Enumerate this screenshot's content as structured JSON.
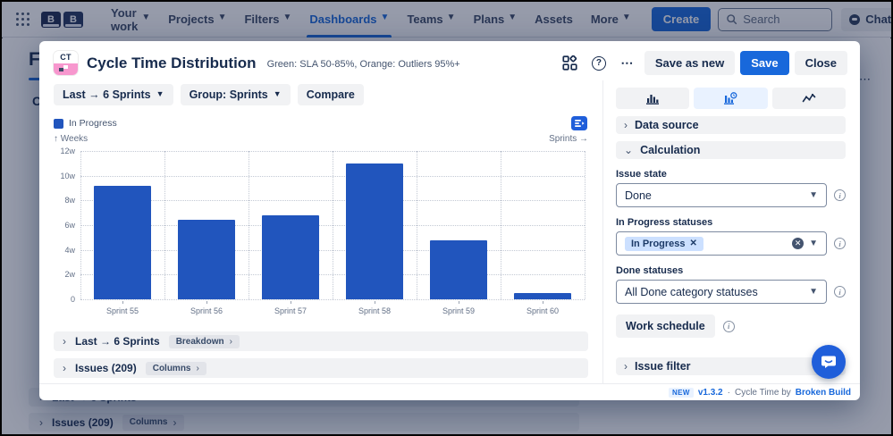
{
  "colors": {
    "accent": "#1868db",
    "bar": "#2155bd",
    "selected_tab_bg": "#e9f2ff",
    "tag_bg": "#cce0ff"
  },
  "topnav": {
    "logo_letters": [
      "B",
      "B"
    ],
    "items": [
      {
        "label": "Your work",
        "dropdown": true,
        "active": false
      },
      {
        "label": "Projects",
        "dropdown": true,
        "active": false
      },
      {
        "label": "Filters",
        "dropdown": true,
        "active": false
      },
      {
        "label": "Dashboards",
        "dropdown": true,
        "active": true
      },
      {
        "label": "Teams",
        "dropdown": true,
        "active": false
      },
      {
        "label": "Plans",
        "dropdown": true,
        "active": false
      },
      {
        "label": "Assets",
        "dropdown": false,
        "active": false
      },
      {
        "label": "More",
        "dropdown": true,
        "active": false
      }
    ],
    "create_label": "Create",
    "search_placeholder": "Search",
    "chat_label": "Chat"
  },
  "background": {
    "page_heading": "Fl",
    "partial_text": "C",
    "rows": [
      {
        "title": "Last → 6 Sprints"
      },
      {
        "title": "Issues (209)",
        "chip": "Columns"
      }
    ]
  },
  "modal": {
    "app_icon_text": "CT",
    "title": "Cycle Time Distribution",
    "subtitle": "Green: SLA 50-85%, Orange: Outliers 95%+",
    "header_buttons": {
      "save_as_new": "Save as new",
      "save": "Save",
      "close": "Close"
    },
    "toolbar": {
      "range": "Last → 6 Sprints",
      "group": "Group: Sprints",
      "compare": "Compare"
    },
    "legend": {
      "label": "In Progress"
    },
    "axis": {
      "y": "↑ Weeks",
      "x": "Sprints →"
    },
    "breakdown_row": {
      "title": "Last → 6 Sprints",
      "chip": "Breakdown"
    },
    "issues_row": {
      "title": "Issues (209)",
      "chip": "Columns"
    },
    "panel": {
      "accordions": {
        "data_source": "Data source",
        "calculation": "Calculation",
        "issue_filter": "Issue filter"
      },
      "fields": {
        "issue_state": {
          "label": "Issue state",
          "value": "Done"
        },
        "in_progress": {
          "label": "In Progress statuses",
          "tag": "In Progress"
        },
        "done": {
          "label": "Done statuses",
          "value": "All Done category statuses"
        }
      },
      "work_schedule_label": "Work schedule"
    },
    "footer": {
      "badge": "NEW",
      "version": "v1.3.2",
      "sep": "·",
      "text": "Cycle Time by",
      "link": "Broken Build"
    }
  },
  "chart_data": {
    "type": "bar",
    "title": "Cycle Time Distribution",
    "categories": [
      "Sprint 55",
      "Sprint 56",
      "Sprint 57",
      "Sprint 58",
      "Sprint 59",
      "Sprint 60"
    ],
    "series": [
      {
        "name": "In Progress",
        "values": [
          9.2,
          6.4,
          6.8,
          11.0,
          4.8,
          0.5
        ]
      }
    ],
    "xlabel": "Sprints",
    "ylabel": "Weeks",
    "ylim": [
      0,
      12
    ],
    "yticks": [
      {
        "v": 0,
        "label": "0"
      },
      {
        "v": 2,
        "label": "2w"
      },
      {
        "v": 4,
        "label": "4w"
      },
      {
        "v": 6,
        "label": "6w"
      },
      {
        "v": 8,
        "label": "8w"
      },
      {
        "v": 10,
        "label": "10w"
      },
      {
        "v": 12,
        "label": "12w"
      }
    ],
    "grid": true,
    "legend_position": "top-left",
    "bar_color": "#2155bd"
  }
}
